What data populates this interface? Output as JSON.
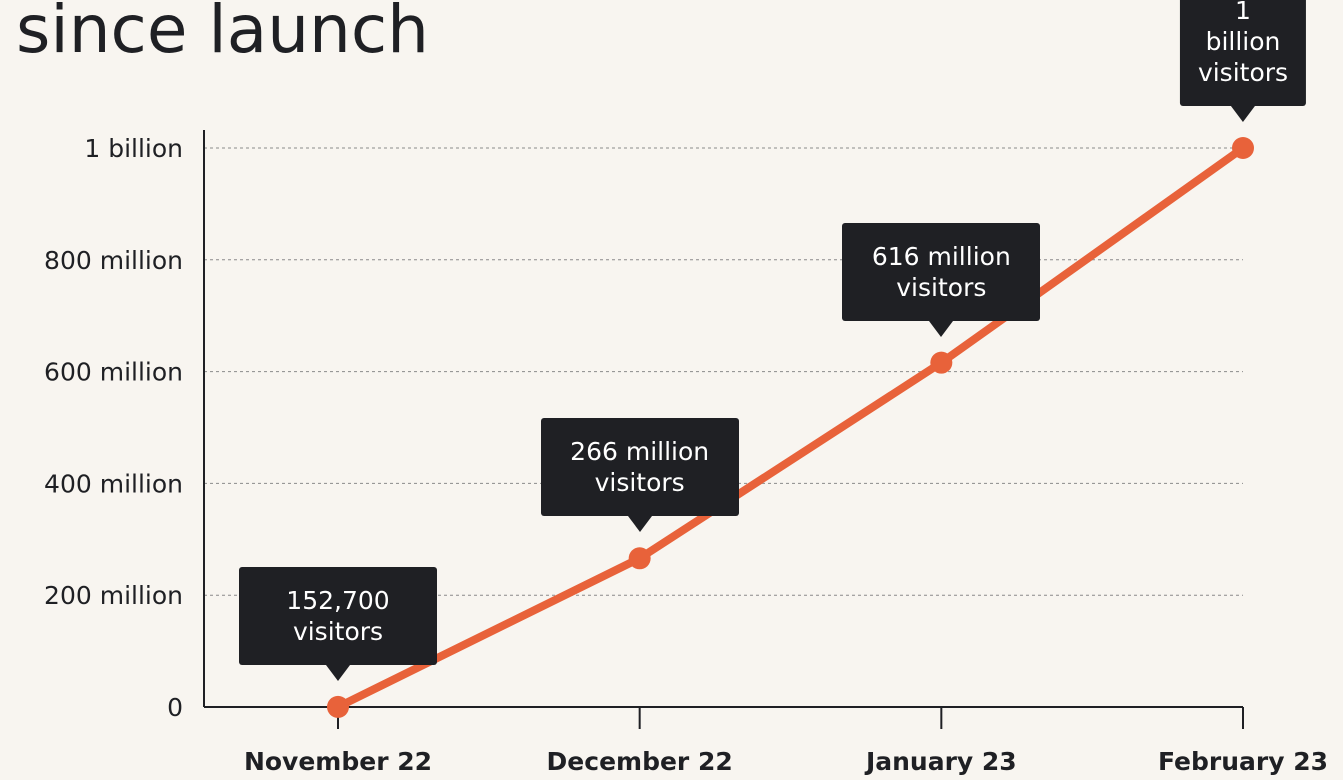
{
  "chart_data": {
    "type": "line",
    "title": "since launch",
    "categories": [
      "November 22",
      "December 22",
      "January 23",
      "February 23"
    ],
    "series": [
      {
        "name": "visitors",
        "color": "#e8623a",
        "values": [
          152700,
          266000000,
          616000000,
          1000000000
        ]
      }
    ],
    "value_labels": [
      "152,700 visitors",
      "266 million visitors",
      "616 million visitors",
      "1 billion visitors"
    ],
    "ylim": [
      0,
      1000000000
    ],
    "yticks": [
      0,
      {
        "value": 200000000,
        "label": "200 million"
      },
      {
        "value": 400000000,
        "label": "400 million"
      },
      {
        "value": 600000000,
        "label": "600 million"
      },
      {
        "value": 800000000,
        "label": "800 million"
      },
      {
        "value": 1000000000,
        "label": "1 billion"
      }
    ],
    "grid": true
  }
}
